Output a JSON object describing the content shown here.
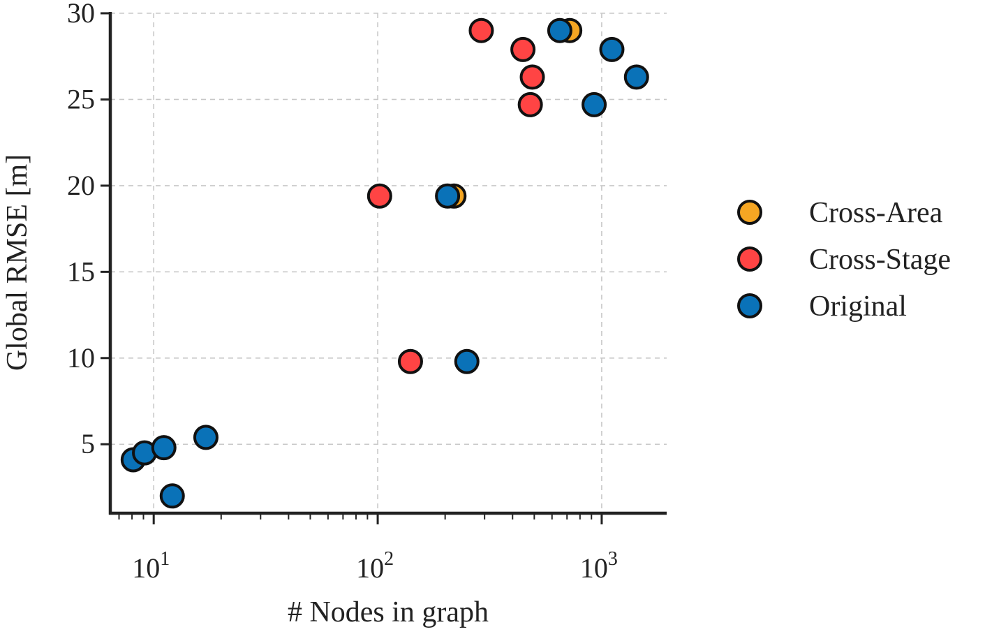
{
  "chart_data": {
    "type": "scatter",
    "title": "",
    "xlabel": "# Nodes in graph",
    "ylabel": "Global RMSE [m]",
    "xscale": "log",
    "xlim": [
      6.4,
      1950
    ],
    "ylim": [
      1.0,
      30.0
    ],
    "grid": true,
    "legend_position": "right",
    "x_ticks": [
      {
        "value": 10,
        "base": "10",
        "exp": "1"
      },
      {
        "value": 100,
        "base": "10",
        "exp": "2"
      },
      {
        "value": 1000,
        "base": "10",
        "exp": "3"
      }
    ],
    "y_ticks": [
      {
        "value": 5,
        "label": "5"
      },
      {
        "value": 10,
        "label": "10"
      },
      {
        "value": 15,
        "label": "15"
      },
      {
        "value": 20,
        "label": "20"
      },
      {
        "value": 25,
        "label": "25"
      },
      {
        "value": 30,
        "label": "30"
      }
    ],
    "series": [
      {
        "name": "Cross-Area",
        "color": "#F5A623",
        "points": [
          [
            219,
            19.4
          ],
          [
            720,
            29.0
          ]
        ]
      },
      {
        "name": "Cross-Stage",
        "color": "#FF4444",
        "points": [
          [
            102,
            19.4
          ],
          [
            140,
            9.8
          ],
          [
            290,
            29.0
          ],
          [
            445,
            27.9
          ],
          [
            490,
            26.3
          ],
          [
            480,
            24.7
          ]
        ]
      },
      {
        "name": "Original",
        "color": "#0A72B8",
        "points": [
          [
            8.1,
            4.1
          ],
          [
            9.1,
            4.5
          ],
          [
            11.1,
            4.8
          ],
          [
            12.1,
            2.0
          ],
          [
            17.1,
            5.4
          ],
          [
            205,
            19.4
          ],
          [
            250,
            9.8
          ],
          [
            650,
            29.0
          ],
          [
            925,
            24.7
          ],
          [
            1110,
            27.9
          ],
          [
            1430,
            26.3
          ]
        ]
      }
    ]
  }
}
